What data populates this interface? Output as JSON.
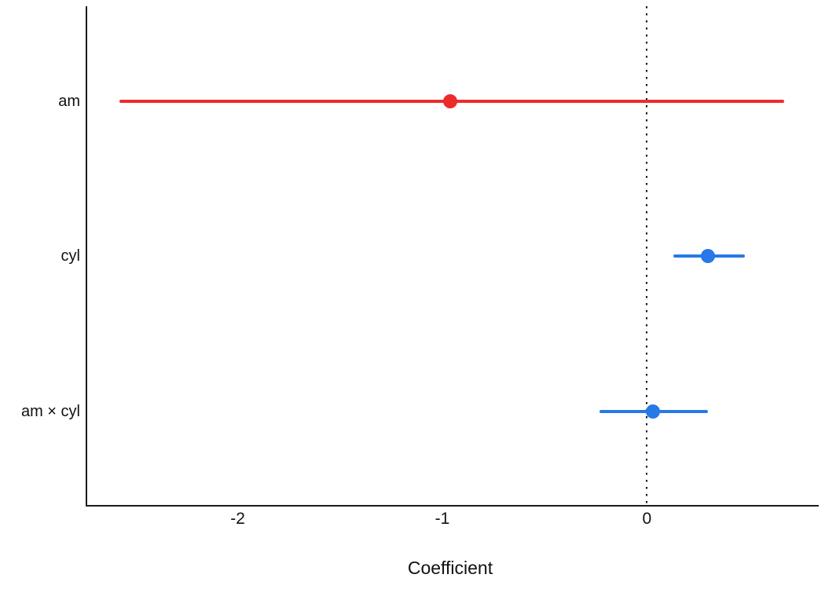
{
  "chart_data": {
    "type": "scatter",
    "subtype": "coefficient-forest-plot",
    "title": "",
    "xlabel": "Coefficient",
    "ylabel": "",
    "grid": false,
    "legend": false,
    "xlim": [
      -2.74,
      0.84
    ],
    "background_color": "#ffffff",
    "axis_color": "#1a1a1a",
    "reference_line": {
      "x": 0,
      "style": "dotted",
      "color": "#111111"
    },
    "categories": [
      "am",
      "cyl",
      "am × cyl"
    ],
    "rows": [
      {
        "label": "am",
        "estimate": -0.96,
        "ci_low": -2.58,
        "ci_high": 0.67,
        "color": "#ED2B2B"
      },
      {
        "label": "cyl",
        "estimate": 0.3,
        "ci_low": 0.13,
        "ci_high": 0.48,
        "color": "#2878E8"
      },
      {
        "label": "am × cyl",
        "estimate": 0.03,
        "ci_low": -0.23,
        "ci_high": 0.3,
        "color": "#2878E8"
      }
    ],
    "x_ticks": [
      {
        "value": -2,
        "label": "-2"
      },
      {
        "value": -1,
        "label": "-1"
      },
      {
        "value": 0,
        "label": "0"
      }
    ]
  }
}
